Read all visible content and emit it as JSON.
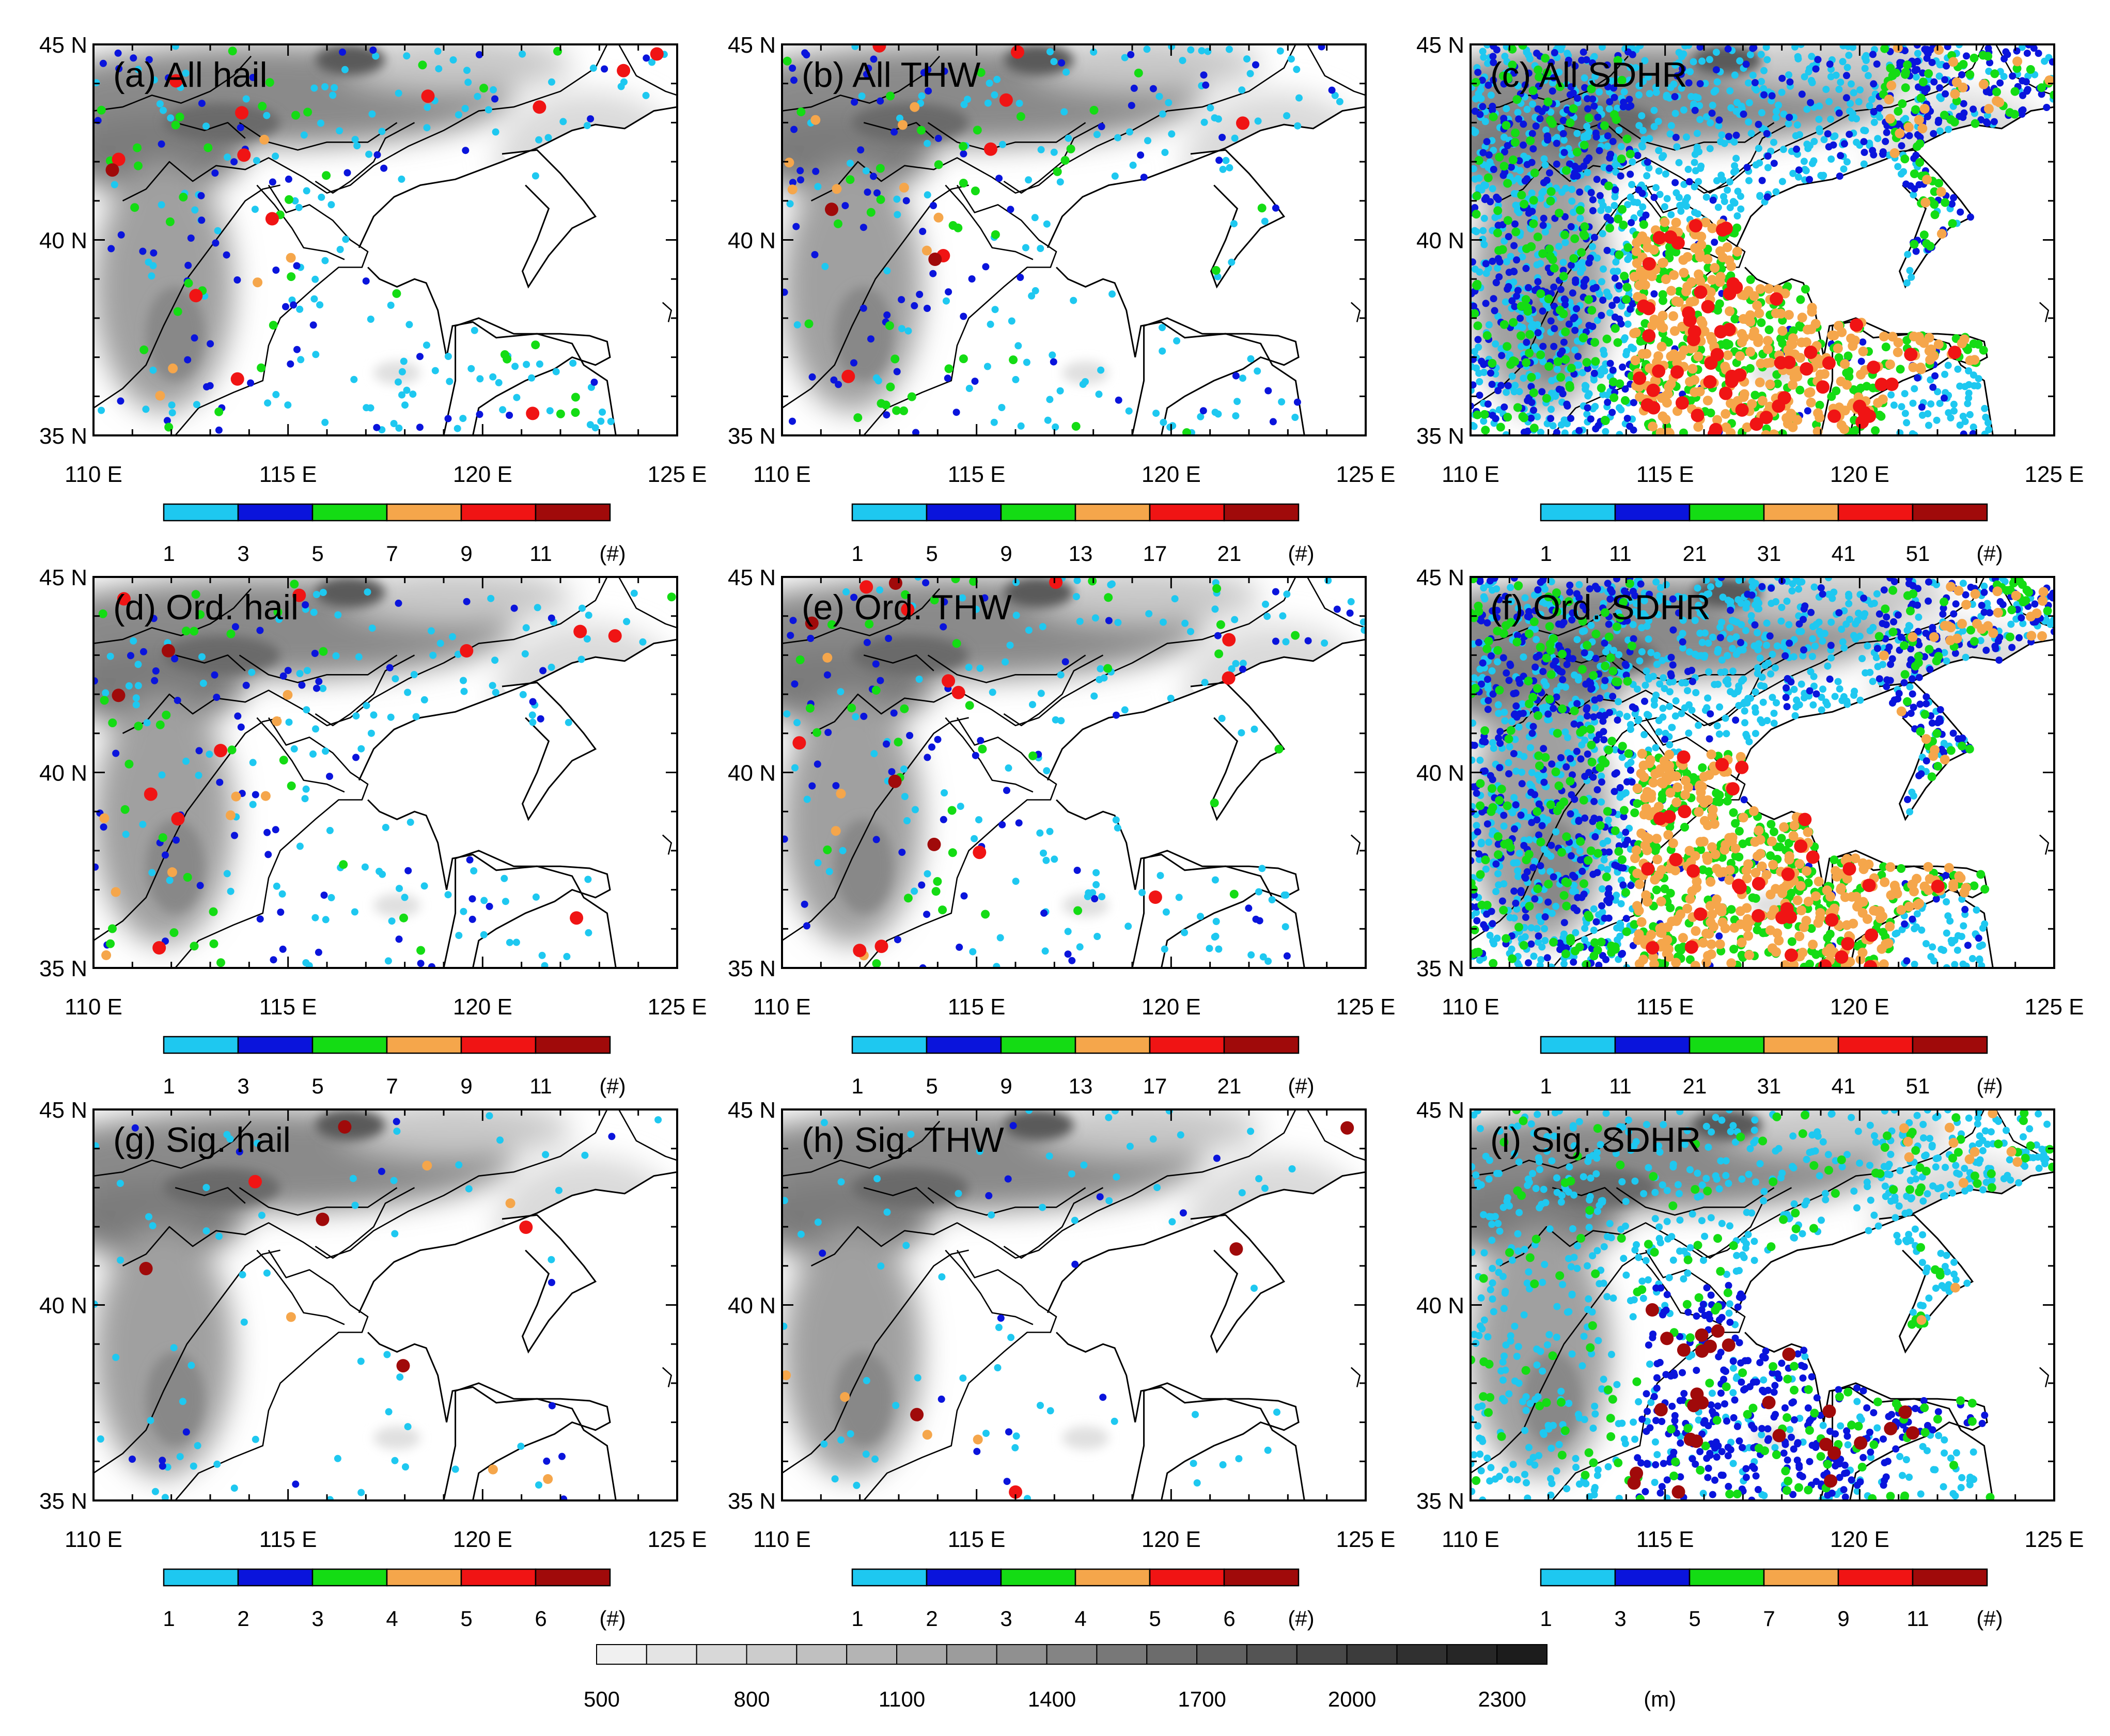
{
  "lon_ticks": [
    "110 E",
    "115 E",
    "120 E",
    "125 E"
  ],
  "lat_ticks": [
    "45 N",
    "40 N",
    "35 N"
  ],
  "point_colors": [
    "#1ec8f0",
    "#0a14dc",
    "#14dc14",
    "#f5a64b",
    "#f01414",
    "#a00a0a"
  ],
  "panels": [
    {
      "label": "(a) All hail",
      "legend_ticks": [
        "1",
        "3",
        "5",
        "7",
        "9",
        "11"
      ],
      "legend_unit": "(#)"
    },
    {
      "label": "(b) All THW",
      "legend_ticks": [
        "1",
        "5",
        "9",
        "13",
        "17",
        "21"
      ],
      "legend_unit": "(#)"
    },
    {
      "label": "(c) All SDHR",
      "legend_ticks": [
        "1",
        "11",
        "21",
        "31",
        "41",
        "51"
      ],
      "legend_unit": "(#)"
    },
    {
      "label": "(d) Ord. hail",
      "legend_ticks": [
        "1",
        "3",
        "5",
        "7",
        "9",
        "11"
      ],
      "legend_unit": "(#)"
    },
    {
      "label": "(e) Ord. THW",
      "legend_ticks": [
        "1",
        "5",
        "9",
        "13",
        "17",
        "21"
      ],
      "legend_unit": "(#)"
    },
    {
      "label": "(f) Ord. SDHR",
      "legend_ticks": [
        "1",
        "11",
        "21",
        "31",
        "41",
        "51"
      ],
      "legend_unit": "(#)"
    },
    {
      "label": "(g) Sig. hail",
      "legend_ticks": [
        "1",
        "2",
        "3",
        "4",
        "5",
        "6"
      ],
      "legend_unit": "(#)"
    },
    {
      "label": "(h) Sig. THW",
      "legend_ticks": [
        "1",
        "2",
        "3",
        "4",
        "5",
        "6"
      ],
      "legend_unit": "(#)"
    },
    {
      "label": "(i) Sig. SDHR",
      "legend_ticks": [
        "1",
        "3",
        "5",
        "7",
        "9",
        "11"
      ],
      "legend_unit": "(#)"
    }
  ],
  "elevation_legend": {
    "ticks": [
      "500",
      "800",
      "1100",
      "1400",
      "1700",
      "2000",
      "2300"
    ],
    "unit": "(m)",
    "colors": [
      "#f0f0f0",
      "#e4e4e4",
      "#d8d8d8",
      "#cccccc",
      "#c0c0c0",
      "#b4b4b4",
      "#a8a8a8",
      "#9c9c9c",
      "#909090",
      "#848484",
      "#787878",
      "#6c6c6c",
      "#606060",
      "#545454",
      "#484848",
      "#3c3c3c",
      "#303030",
      "#262626",
      "#1c1c1c"
    ]
  }
}
